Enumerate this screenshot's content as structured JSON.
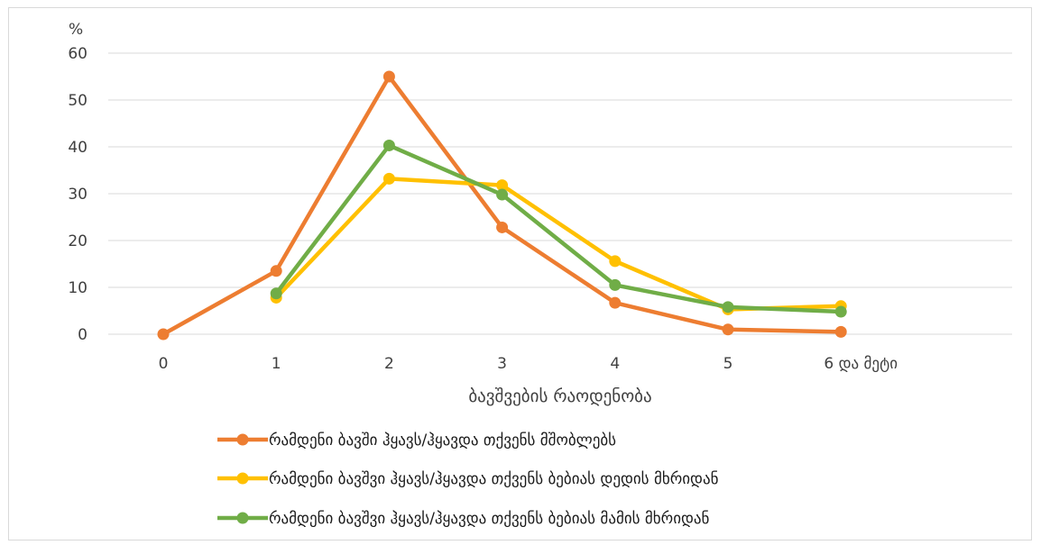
{
  "chart_data": {
    "type": "line",
    "unit_label": "%",
    "xlabel": "ბავშვების რაოდენობა",
    "ylabel": "",
    "ylim": [
      0,
      60
    ],
    "yticks": [
      0,
      10,
      20,
      30,
      40,
      50,
      60
    ],
    "grid": true,
    "legend_position": "bottom",
    "categories": [
      "0",
      "1",
      "2",
      "3",
      "4",
      "5",
      "6 და მეტი"
    ],
    "series": [
      {
        "name": "რამდენი ბავში ჰყავს/ჰყავდა თქვენს მშობლებს",
        "color": "#ED7D31",
        "values": [
          0,
          13.5,
          55,
          22.8,
          6.7,
          1.0,
          0.5
        ]
      },
      {
        "name": "რამდენი ბავშვი ჰყავს/ჰყავდა თქვენს ბებიას დედის მხრიდან",
        "color": "#FFC000",
        "values": [
          null,
          7.8,
          33.2,
          31.8,
          15.6,
          5.3,
          6.0
        ]
      },
      {
        "name": "რამდენი ბავშვი ჰყავს/ჰყავდა თქვენს ბებიას მამის მხრიდან",
        "color": "#70AD47",
        "values": [
          null,
          8.7,
          40.3,
          29.8,
          10.5,
          5.8,
          4.8
        ]
      }
    ]
  }
}
